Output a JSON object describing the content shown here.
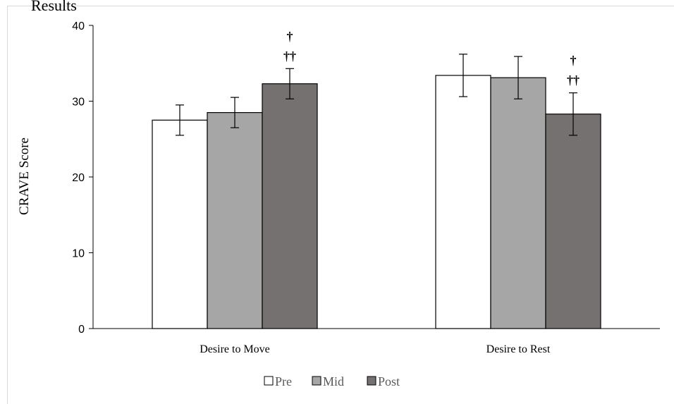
{
  "header_fragment": "Results",
  "chart_data": {
    "type": "bar",
    "title": "",
    "xlabel": "",
    "ylabel": "CRAVE Score",
    "ylim": [
      0,
      40
    ],
    "yticks": [
      "0",
      "10",
      "20",
      "30",
      "40"
    ],
    "categories": [
      "Desire to Move",
      "Desire to Rest"
    ],
    "series": [
      {
        "name": "Pre",
        "color": "#ffffff",
        "values": [
          27.5,
          33.4
        ],
        "errors": [
          2.0,
          2.8
        ]
      },
      {
        "name": "Mid",
        "color": "#a6a6a6",
        "values": [
          28.5,
          33.1
        ],
        "errors": [
          2.0,
          2.8
        ]
      },
      {
        "name": "Post",
        "color": "#767171",
        "values": [
          32.3,
          28.3
        ],
        "errors": [
          2.0,
          2.8
        ]
      }
    ],
    "annotations": [
      {
        "category": 0,
        "series": 2,
        "lines": [
          "†",
          "††"
        ]
      },
      {
        "category": 1,
        "series": 2,
        "lines": [
          "†",
          "††"
        ]
      }
    ],
    "legend_position": "bottom",
    "grid": false
  }
}
